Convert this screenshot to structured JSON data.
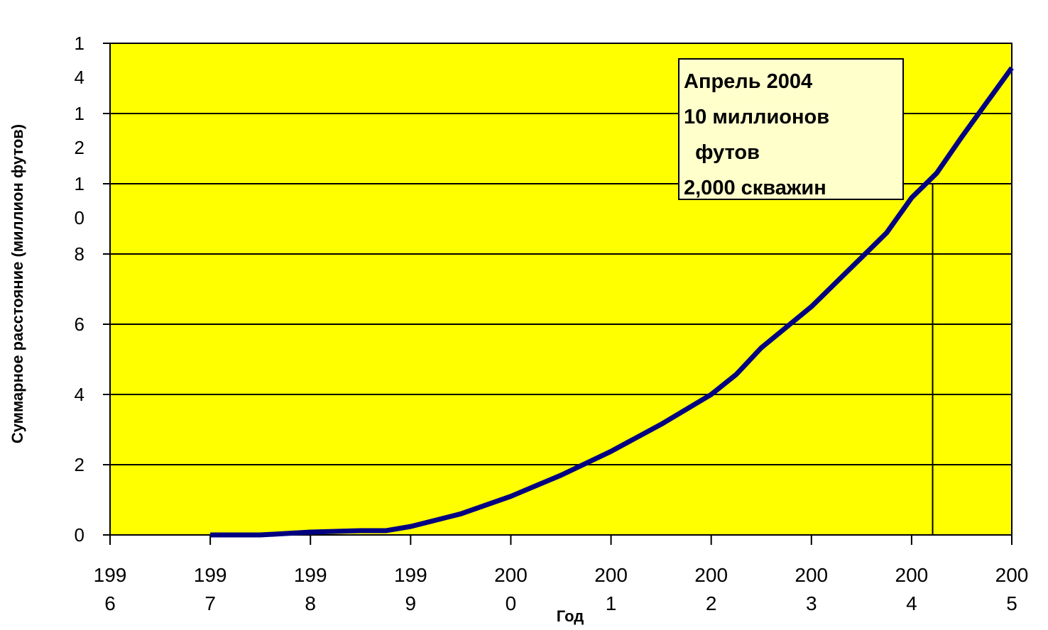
{
  "chart_data": {
    "type": "line",
    "x_label": "Год",
    "y_label": "Суммарное расстояние (миллион футов)",
    "x": [
      1997,
      1997.5,
      1998,
      1998.5,
      1998.75,
      1999,
      1999.5,
      2000,
      2000.5,
      2001,
      2001.5,
      2002,
      2002.25,
      2002.5,
      2003,
      2003.5,
      2003.75,
      2004,
      2004.25,
      2004.5,
      2005
    ],
    "series": [
      {
        "color": "#000080",
        "values": [
          0,
          0,
          0.08,
          0.12,
          0.12,
          0.24,
          0.6,
          1.1,
          1.7,
          2.38,
          3.15,
          4.0,
          4.57,
          5.33,
          6.5,
          7.9,
          8.6,
          9.6,
          10.3,
          11.33,
          13.3
        ]
      }
    ],
    "xlim": [
      1996,
      2005
    ],
    "xticks": [
      1996,
      1997,
      1998,
      1999,
      2000,
      2001,
      2002,
      2003,
      2004,
      2005
    ],
    "ylim": [
      0,
      14
    ],
    "yticks": [
      0,
      2,
      4,
      6,
      8,
      10,
      12,
      14
    ],
    "grid": true,
    "plot_background": "#ffff00",
    "annotation": {
      "lines": [
        "Апрель 2004",
        "10 миллионов",
        "  футов",
        "2,000 скважин"
      ],
      "x": 2004.21,
      "y": 10
    }
  }
}
